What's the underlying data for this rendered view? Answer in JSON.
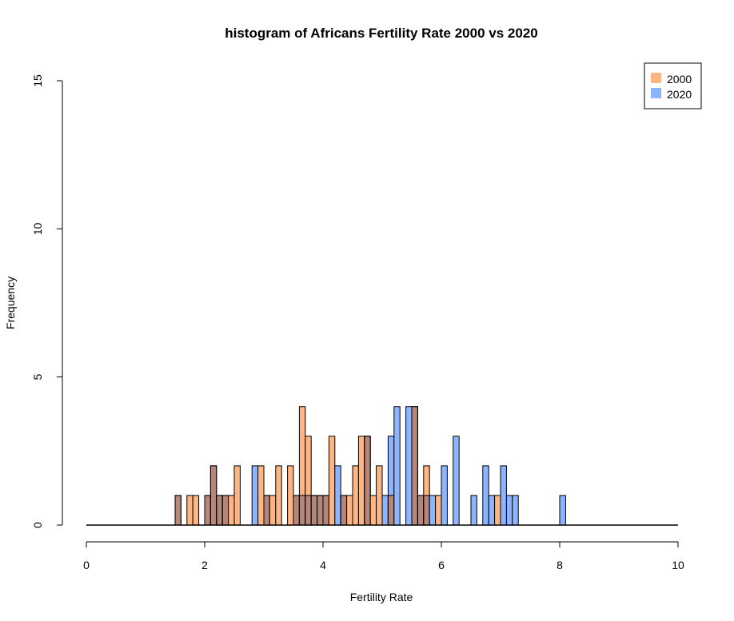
{
  "chart_data": {
    "type": "bar",
    "title": "histogram of Africans Fertility Rate 2000 vs 2020",
    "xlabel": "Fertility Rate",
    "ylabel": "Frequency",
    "xlim": [
      0,
      10
    ],
    "ylim": [
      0,
      15
    ],
    "xticks": [
      "0",
      "2",
      "4",
      "6",
      "8",
      "10"
    ],
    "yticks": [
      "0",
      "5",
      "10",
      "15"
    ],
    "bin_width": 0.1,
    "grid": false,
    "legend_position": "top-right",
    "series": [
      {
        "name": "2000",
        "color": "#fdb584",
        "bins": [
          {
            "start": 1.5,
            "count": 1
          },
          {
            "start": 1.7,
            "count": 1
          },
          {
            "start": 1.8,
            "count": 1
          },
          {
            "start": 2.0,
            "count": 1
          },
          {
            "start": 2.1,
            "count": 2
          },
          {
            "start": 2.2,
            "count": 1
          },
          {
            "start": 2.3,
            "count": 1
          },
          {
            "start": 2.4,
            "count": 1
          },
          {
            "start": 2.5,
            "count": 2
          },
          {
            "start": 2.9,
            "count": 2
          },
          {
            "start": 3.0,
            "count": 1
          },
          {
            "start": 3.1,
            "count": 1
          },
          {
            "start": 3.2,
            "count": 2
          },
          {
            "start": 3.4,
            "count": 2
          },
          {
            "start": 3.5,
            "count": 1
          },
          {
            "start": 3.6,
            "count": 4
          },
          {
            "start": 3.7,
            "count": 3
          },
          {
            "start": 3.8,
            "count": 1
          },
          {
            "start": 3.9,
            "count": 1
          },
          {
            "start": 4.0,
            "count": 1
          },
          {
            "start": 4.1,
            "count": 3
          },
          {
            "start": 4.3,
            "count": 1
          },
          {
            "start": 4.4,
            "count": 1
          },
          {
            "start": 4.5,
            "count": 2
          },
          {
            "start": 4.6,
            "count": 3
          },
          {
            "start": 4.7,
            "count": 3
          },
          {
            "start": 4.8,
            "count": 1
          },
          {
            "start": 4.9,
            "count": 2
          },
          {
            "start": 5.1,
            "count": 1
          },
          {
            "start": 5.5,
            "count": 4
          },
          {
            "start": 5.6,
            "count": 1
          },
          {
            "start": 5.7,
            "count": 2
          },
          {
            "start": 5.9,
            "count": 1
          },
          {
            "start": 6.9,
            "count": 1
          }
        ]
      },
      {
        "name": "2020",
        "color": "#8cb4ff",
        "bins": [
          {
            "start": 1.5,
            "count": 1
          },
          {
            "start": 2.0,
            "count": 1
          },
          {
            "start": 2.1,
            "count": 2
          },
          {
            "start": 2.2,
            "count": 1
          },
          {
            "start": 2.3,
            "count": 1
          },
          {
            "start": 2.8,
            "count": 2
          },
          {
            "start": 3.0,
            "count": 1
          },
          {
            "start": 3.5,
            "count": 1
          },
          {
            "start": 3.6,
            "count": 1
          },
          {
            "start": 3.7,
            "count": 1
          },
          {
            "start": 3.8,
            "count": 1
          },
          {
            "start": 3.9,
            "count": 1
          },
          {
            "start": 4.0,
            "count": 1
          },
          {
            "start": 4.2,
            "count": 2
          },
          {
            "start": 4.3,
            "count": 1
          },
          {
            "start": 4.7,
            "count": 3
          },
          {
            "start": 5.0,
            "count": 1
          },
          {
            "start": 5.1,
            "count": 3
          },
          {
            "start": 5.2,
            "count": 4
          },
          {
            "start": 5.4,
            "count": 4
          },
          {
            "start": 5.5,
            "count": 4
          },
          {
            "start": 5.6,
            "count": 1
          },
          {
            "start": 5.7,
            "count": 1
          },
          {
            "start": 5.8,
            "count": 1
          },
          {
            "start": 6.0,
            "count": 2
          },
          {
            "start": 6.2,
            "count": 3
          },
          {
            "start": 6.5,
            "count": 1
          },
          {
            "start": 6.7,
            "count": 2
          },
          {
            "start": 6.8,
            "count": 1
          },
          {
            "start": 7.0,
            "count": 2
          },
          {
            "start": 7.1,
            "count": 1
          },
          {
            "start": 7.2,
            "count": 1
          },
          {
            "start": 8.0,
            "count": 1
          }
        ]
      }
    ],
    "overlap_color": "#b5877b"
  }
}
